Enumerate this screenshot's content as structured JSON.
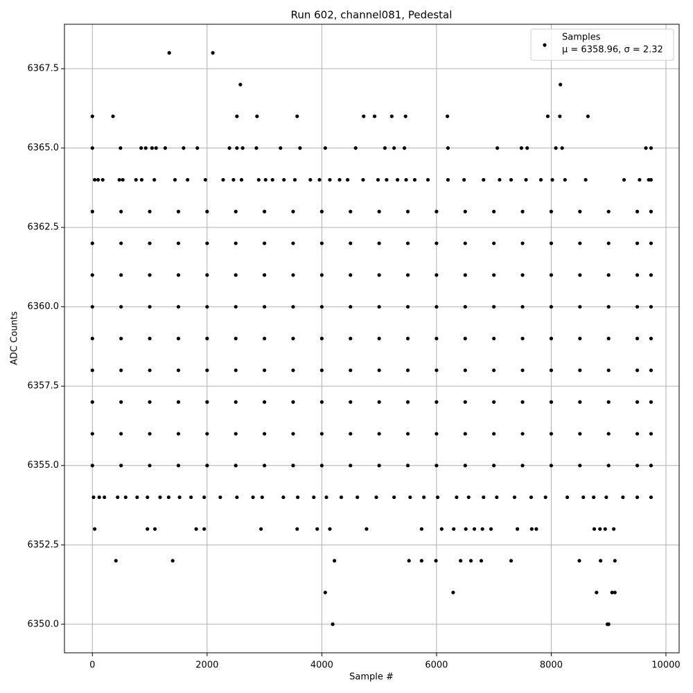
{
  "chart_data": {
    "type": "scatter",
    "title": "Run 602, channel081, Pedestal",
    "x_label": "Sample #",
    "y_label": "ADC Counts",
    "legend_note": "μ = 6358.96, σ = 2.32",
    "legend": "upper right",
    "grid": true,
    "xlim": [
      -487,
      10230
    ],
    "ylim": [
      6349.1,
      6368.9
    ],
    "xticks": [
      0,
      2000,
      4000,
      6000,
      8000,
      10000
    ],
    "yticks": [
      {
        "value": 6350,
        "label": "6350.0"
      },
      {
        "value": 6352.5,
        "label": "6352.5"
      },
      {
        "value": 6355,
        "label": "6355.0"
      },
      {
        "value": 6357.5,
        "label": "6357.5"
      },
      {
        "value": 6360,
        "label": "6360.0"
      },
      {
        "value": 6362.5,
        "label": "6362.5"
      },
      {
        "value": 6365,
        "label": "6365.0"
      },
      {
        "value": 6367.5,
        "label": "6367.5"
      }
    ],
    "series": [
      {
        "name": "Samples",
        "color": "#000000",
        "x": [
          1340,
          2100,
          2580,
          8160,
          0,
          360,
          2520,
          2870,
          3570,
          4730,
          4920,
          5220,
          5460,
          6190,
          7940,
          8150,
          8640,
          0,
          490,
          850,
          930,
          1040,
          1110,
          1270,
          1590,
          1830,
          2390,
          2520,
          2620,
          2860,
          3280,
          3620,
          4060,
          4590,
          5100,
          5260,
          5440,
          6200,
          7060,
          7480,
          7580,
          8080,
          8190,
          9650,
          9740,
          40,
          100,
          180,
          470,
          530,
          760,
          860,
          1080,
          1440,
          1660,
          1970,
          2280,
          2460,
          2600,
          2900,
          3020,
          3140,
          3340,
          3530,
          3800,
          3960,
          4140,
          4310,
          4450,
          4720,
          4980,
          5130,
          5320,
          5470,
          5620,
          5850,
          6200,
          6480,
          6820,
          7100,
          7300,
          7560,
          7820,
          8020,
          8240,
          8600,
          9270,
          9540,
          9700,
          9740,
          0,
          500,
          1000,
          1500,
          2000,
          2500,
          3000,
          3500,
          4000,
          4500,
          5000,
          5500,
          6000,
          6500,
          7000,
          7500,
          8000,
          8500,
          9000,
          9500,
          9740,
          0,
          500,
          1000,
          1500,
          2000,
          2500,
          3000,
          3500,
          4000,
          4500,
          5000,
          5500,
          6000,
          6500,
          7000,
          7500,
          8000,
          8500,
          9000,
          9500,
          9740,
          0,
          500,
          1000,
          1500,
          2000,
          2500,
          3000,
          3500,
          4000,
          4500,
          5000,
          5500,
          6000,
          6500,
          7000,
          7500,
          8000,
          8500,
          9000,
          9500,
          9740,
          0,
          500,
          1000,
          1500,
          2000,
          2500,
          3000,
          3500,
          4000,
          4500,
          5000,
          5500,
          6000,
          6500,
          7000,
          7500,
          8000,
          8500,
          9000,
          9500,
          9740,
          0,
          500,
          1000,
          1500,
          2000,
          2500,
          3000,
          3500,
          4000,
          4500,
          5000,
          5500,
          6000,
          6500,
          7000,
          7500,
          8000,
          8500,
          9000,
          9500,
          9740,
          0,
          500,
          1000,
          1500,
          2000,
          2500,
          3000,
          3500,
          4000,
          4500,
          5000,
          5500,
          6000,
          6500,
          7000,
          7500,
          8000,
          8500,
          9000,
          9500,
          9740,
          0,
          500,
          1000,
          1500,
          2000,
          2500,
          3000,
          3500,
          4000,
          4500,
          5000,
          5500,
          6000,
          6500,
          7000,
          7500,
          8000,
          8500,
          9000,
          9500,
          9740,
          0,
          500,
          1000,
          1500,
          2000,
          2500,
          3000,
          3500,
          4000,
          4500,
          5000,
          5500,
          6000,
          6500,
          7000,
          7500,
          8000,
          8500,
          9000,
          9500,
          9740,
          0,
          500,
          1000,
          1500,
          2000,
          2500,
          3000,
          3500,
          4000,
          4500,
          5000,
          5500,
          6000,
          6500,
          7000,
          7500,
          8000,
          8500,
          9000,
          9500,
          9740,
          20,
          120,
          210,
          440,
          580,
          780,
          960,
          1180,
          1330,
          1520,
          1720,
          1950,
          2230,
          2520,
          2800,
          2960,
          3330,
          3580,
          3860,
          4080,
          4340,
          4620,
          4950,
          5260,
          5540,
          5780,
          6020,
          6350,
          6560,
          6820,
          7050,
          7360,
          7650,
          7900,
          8280,
          8560,
          8740,
          8960,
          9250,
          9500,
          9740,
          40,
          960,
          1090,
          1810,
          1950,
          2940,
          3570,
          3920,
          4140,
          4780,
          5740,
          6090,
          6300,
          6510,
          6660,
          6800,
          6950,
          7410,
          7660,
          7740,
          8750,
          8850,
          8940,
          9090,
          410,
          1400,
          4220,
          5520,
          5740,
          5990,
          6420,
          6600,
          6780,
          7300,
          8490,
          8860,
          9110,
          4060,
          6290,
          8790,
          9060,
          9110,
          4190,
          8980,
          9000
        ],
        "values": [
          6368,
          6368,
          6367,
          6367,
          6366,
          6366,
          6366,
          6366,
          6366,
          6366,
          6366,
          6366,
          6366,
          6366,
          6366,
          6366,
          6366,
          6365,
          6365,
          6365,
          6365,
          6365,
          6365,
          6365,
          6365,
          6365,
          6365,
          6365,
          6365,
          6365,
          6365,
          6365,
          6365,
          6365,
          6365,
          6365,
          6365,
          6365,
          6365,
          6365,
          6365,
          6365,
          6365,
          6365,
          6365,
          6364,
          6364,
          6364,
          6364,
          6364,
          6364,
          6364,
          6364,
          6364,
          6364,
          6364,
          6364,
          6364,
          6364,
          6364,
          6364,
          6364,
          6364,
          6364,
          6364,
          6364,
          6364,
          6364,
          6364,
          6364,
          6364,
          6364,
          6364,
          6364,
          6364,
          6364,
          6364,
          6364,
          6364,
          6364,
          6364,
          6364,
          6364,
          6364,
          6364,
          6364,
          6364,
          6364,
          6364,
          6364,
          6363,
          6363,
          6363,
          6363,
          6363,
          6363,
          6363,
          6363,
          6363,
          6363,
          6363,
          6363,
          6363,
          6363,
          6363,
          6363,
          6363,
          6363,
          6363,
          6363,
          6363,
          6362,
          6362,
          6362,
          6362,
          6362,
          6362,
          6362,
          6362,
          6362,
          6362,
          6362,
          6362,
          6362,
          6362,
          6362,
          6362,
          6362,
          6362,
          6362,
          6362,
          6362,
          6361,
          6361,
          6361,
          6361,
          6361,
          6361,
          6361,
          6361,
          6361,
          6361,
          6361,
          6361,
          6361,
          6361,
          6361,
          6361,
          6361,
          6361,
          6361,
          6361,
          6361,
          6360,
          6360,
          6360,
          6360,
          6360,
          6360,
          6360,
          6360,
          6360,
          6360,
          6360,
          6360,
          6360,
          6360,
          6360,
          6360,
          6360,
          6360,
          6360,
          6360,
          6360,
          6359,
          6359,
          6359,
          6359,
          6359,
          6359,
          6359,
          6359,
          6359,
          6359,
          6359,
          6359,
          6359,
          6359,
          6359,
          6359,
          6359,
          6359,
          6359,
          6359,
          6359,
          6358,
          6358,
          6358,
          6358,
          6358,
          6358,
          6358,
          6358,
          6358,
          6358,
          6358,
          6358,
          6358,
          6358,
          6358,
          6358,
          6358,
          6358,
          6358,
          6358,
          6358,
          6357,
          6357,
          6357,
          6357,
          6357,
          6357,
          6357,
          6357,
          6357,
          6357,
          6357,
          6357,
          6357,
          6357,
          6357,
          6357,
          6357,
          6357,
          6357,
          6357,
          6357,
          6356,
          6356,
          6356,
          6356,
          6356,
          6356,
          6356,
          6356,
          6356,
          6356,
          6356,
          6356,
          6356,
          6356,
          6356,
          6356,
          6356,
          6356,
          6356,
          6356,
          6356,
          6355,
          6355,
          6355,
          6355,
          6355,
          6355,
          6355,
          6355,
          6355,
          6355,
          6355,
          6355,
          6355,
          6355,
          6355,
          6355,
          6355,
          6355,
          6355,
          6355,
          6355,
          6354,
          6354,
          6354,
          6354,
          6354,
          6354,
          6354,
          6354,
          6354,
          6354,
          6354,
          6354,
          6354,
          6354,
          6354,
          6354,
          6354,
          6354,
          6354,
          6354,
          6354,
          6354,
          6354,
          6354,
          6354,
          6354,
          6354,
          6354,
          6354,
          6354,
          6354,
          6354,
          6354,
          6354,
          6354,
          6354,
          6354,
          6354,
          6354,
          6354,
          6354,
          6353,
          6353,
          6353,
          6353,
          6353,
          6353,
          6353,
          6353,
          6353,
          6353,
          6353,
          6353,
          6353,
          6353,
          6353,
          6353,
          6353,
          6353,
          6353,
          6353,
          6353,
          6353,
          6353,
          6353,
          6352,
          6352,
          6352,
          6352,
          6352,
          6352,
          6352,
          6352,
          6352,
          6352,
          6352,
          6352,
          6352,
          6351,
          6351,
          6351,
          6351,
          6351,
          6350,
          6350,
          6350
        ]
      }
    ]
  }
}
